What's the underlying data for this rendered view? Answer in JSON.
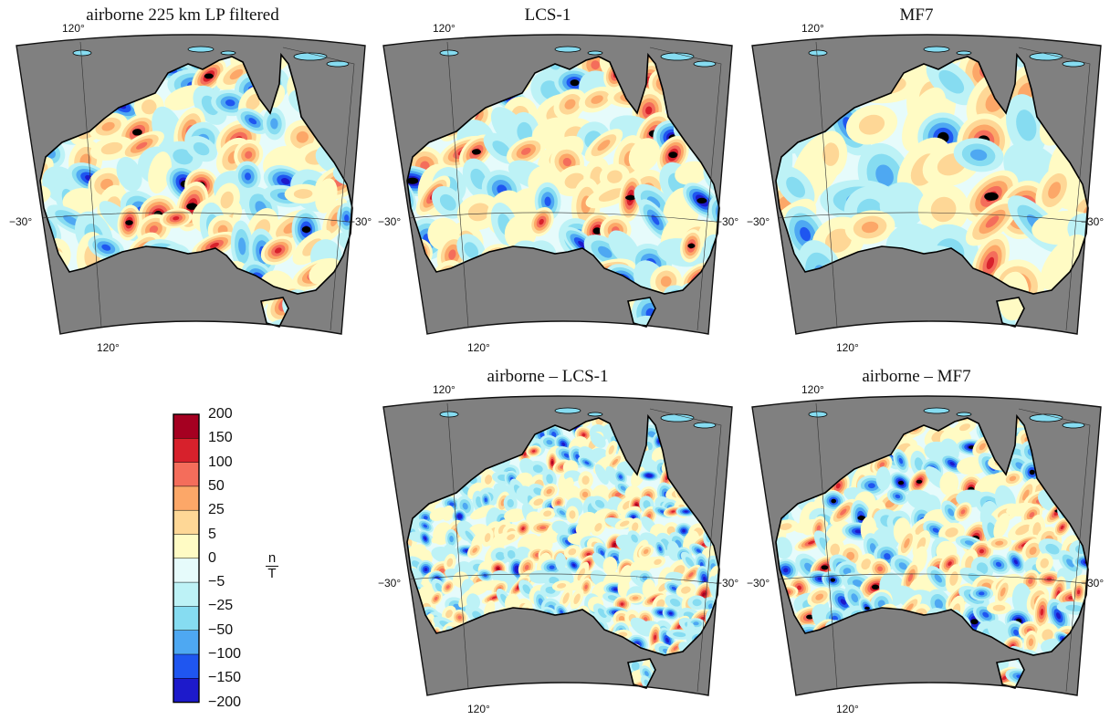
{
  "panels": [
    {
      "id": "airborne",
      "title": "airborne 225 km LP filtered",
      "pattern": "large"
    },
    {
      "id": "lcs1",
      "title": "LCS-1",
      "pattern": "large"
    },
    {
      "id": "mf7",
      "title": "MF7",
      "pattern": "smooth"
    },
    {
      "id": "diff_lcs1",
      "title": "airborne – LCS-1",
      "pattern": "small"
    },
    {
      "id": "diff_mf7",
      "title": "airborne – MF7",
      "pattern": "medium"
    }
  ],
  "tick_labels": {
    "lon": "120°",
    "lat_left": "−30°",
    "lat_right": "−30°"
  },
  "colorbar": {
    "unit_top": "n",
    "unit_bottom": "T",
    "labels": [
      "200",
      "150",
      "100",
      "50",
      "25",
      "5",
      "0",
      "−5",
      "−25",
      "−50",
      "−100",
      "−150",
      "−200"
    ],
    "colors": [
      "#a50021",
      "#d7212c",
      "#f46d5b",
      "#fca768",
      "#fed796",
      "#fffbc4",
      "#e6fbfb",
      "#bdf2f6",
      "#86dcf1",
      "#4ea8f2",
      "#1f56f0",
      "#1d1acb"
    ]
  },
  "colors": {
    "ocean": "#808080",
    "coast": "#000000",
    "frame": "#111111"
  }
}
